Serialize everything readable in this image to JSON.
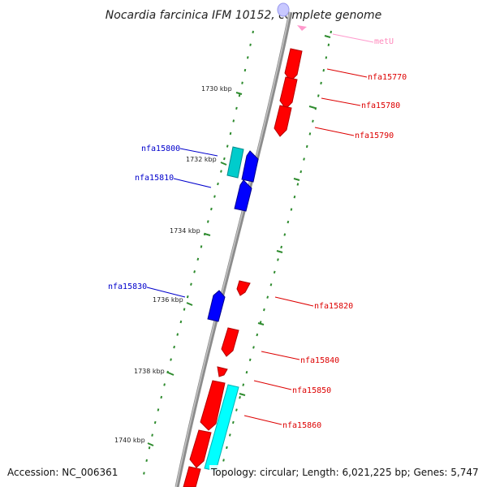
{
  "title": "Nocardia farcinica IFM 10152, complete genome",
  "footer": {
    "accession": "Accession: NC_006361",
    "summary": "Topology: circular; Length: 6,021,225 bp; Genes: 5,747"
  },
  "colors": {
    "forward_gene": "#ff0000",
    "reverse_gene": "#0000ff",
    "cyan_feature": "#00e5e5",
    "rna_gene": "#ff99cc",
    "tick": "#2e8b2e",
    "backbone": "#8c8c8c"
  },
  "ticks": [
    {
      "label": "1730 kbp"
    },
    {
      "label": "1732 kbp"
    },
    {
      "label": "1734 kbp"
    },
    {
      "label": "1736 kbp"
    },
    {
      "label": "1738 kbp"
    },
    {
      "label": "1740 kbp"
    }
  ],
  "genes": [
    {
      "name": "metU",
      "strand": "+",
      "color": "#ff99cc"
    },
    {
      "name": "nfa15770",
      "strand": "+",
      "color": "#dd0000"
    },
    {
      "name": "nfa15780",
      "strand": "+",
      "color": "#dd0000"
    },
    {
      "name": "nfa15790",
      "strand": "+",
      "color": "#dd0000"
    },
    {
      "name": "nfa15800",
      "strand": "-",
      "color": "#0000cc"
    },
    {
      "name": "nfa15810",
      "strand": "-",
      "color": "#0000cc"
    },
    {
      "name": "nfa15820",
      "strand": "+",
      "color": "#dd0000"
    },
    {
      "name": "nfa15830",
      "strand": "-",
      "color": "#0000cc"
    },
    {
      "name": "nfa15840",
      "strand": "+",
      "color": "#dd0000"
    },
    {
      "name": "nfa15850",
      "strand": "+",
      "color": "#dd0000"
    },
    {
      "name": "nfa15860",
      "strand": "+",
      "color": "#dd0000"
    }
  ]
}
